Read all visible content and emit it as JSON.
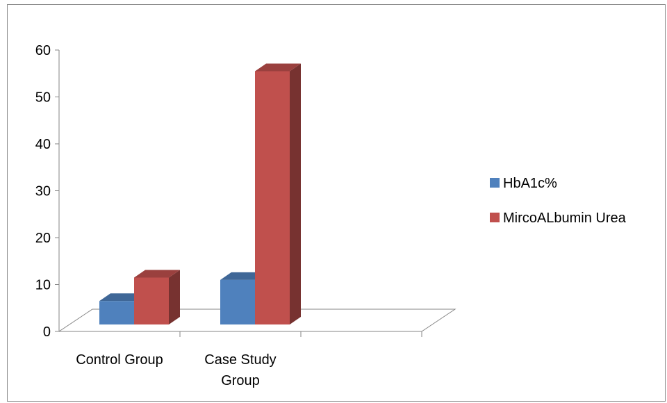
{
  "chart_data": {
    "type": "bar",
    "style": "3d-clustered-column",
    "categories": [
      [
        "Control Group"
      ],
      [
        "Case Study",
        "Group"
      ]
    ],
    "series": [
      {
        "name": "HbA1c%",
        "values": [
          5,
          9.5
        ],
        "color": "#4f81bd"
      },
      {
        "name": "MircoALbumin Urea",
        "values": [
          10,
          54
        ],
        "color": "#c0504d"
      }
    ],
    "ylim": [
      0,
      60
    ],
    "yticks": [
      "0",
      "10",
      "20",
      "30",
      "40",
      "50",
      "60"
    ],
    "grid": false,
    "legend_position": "right"
  }
}
